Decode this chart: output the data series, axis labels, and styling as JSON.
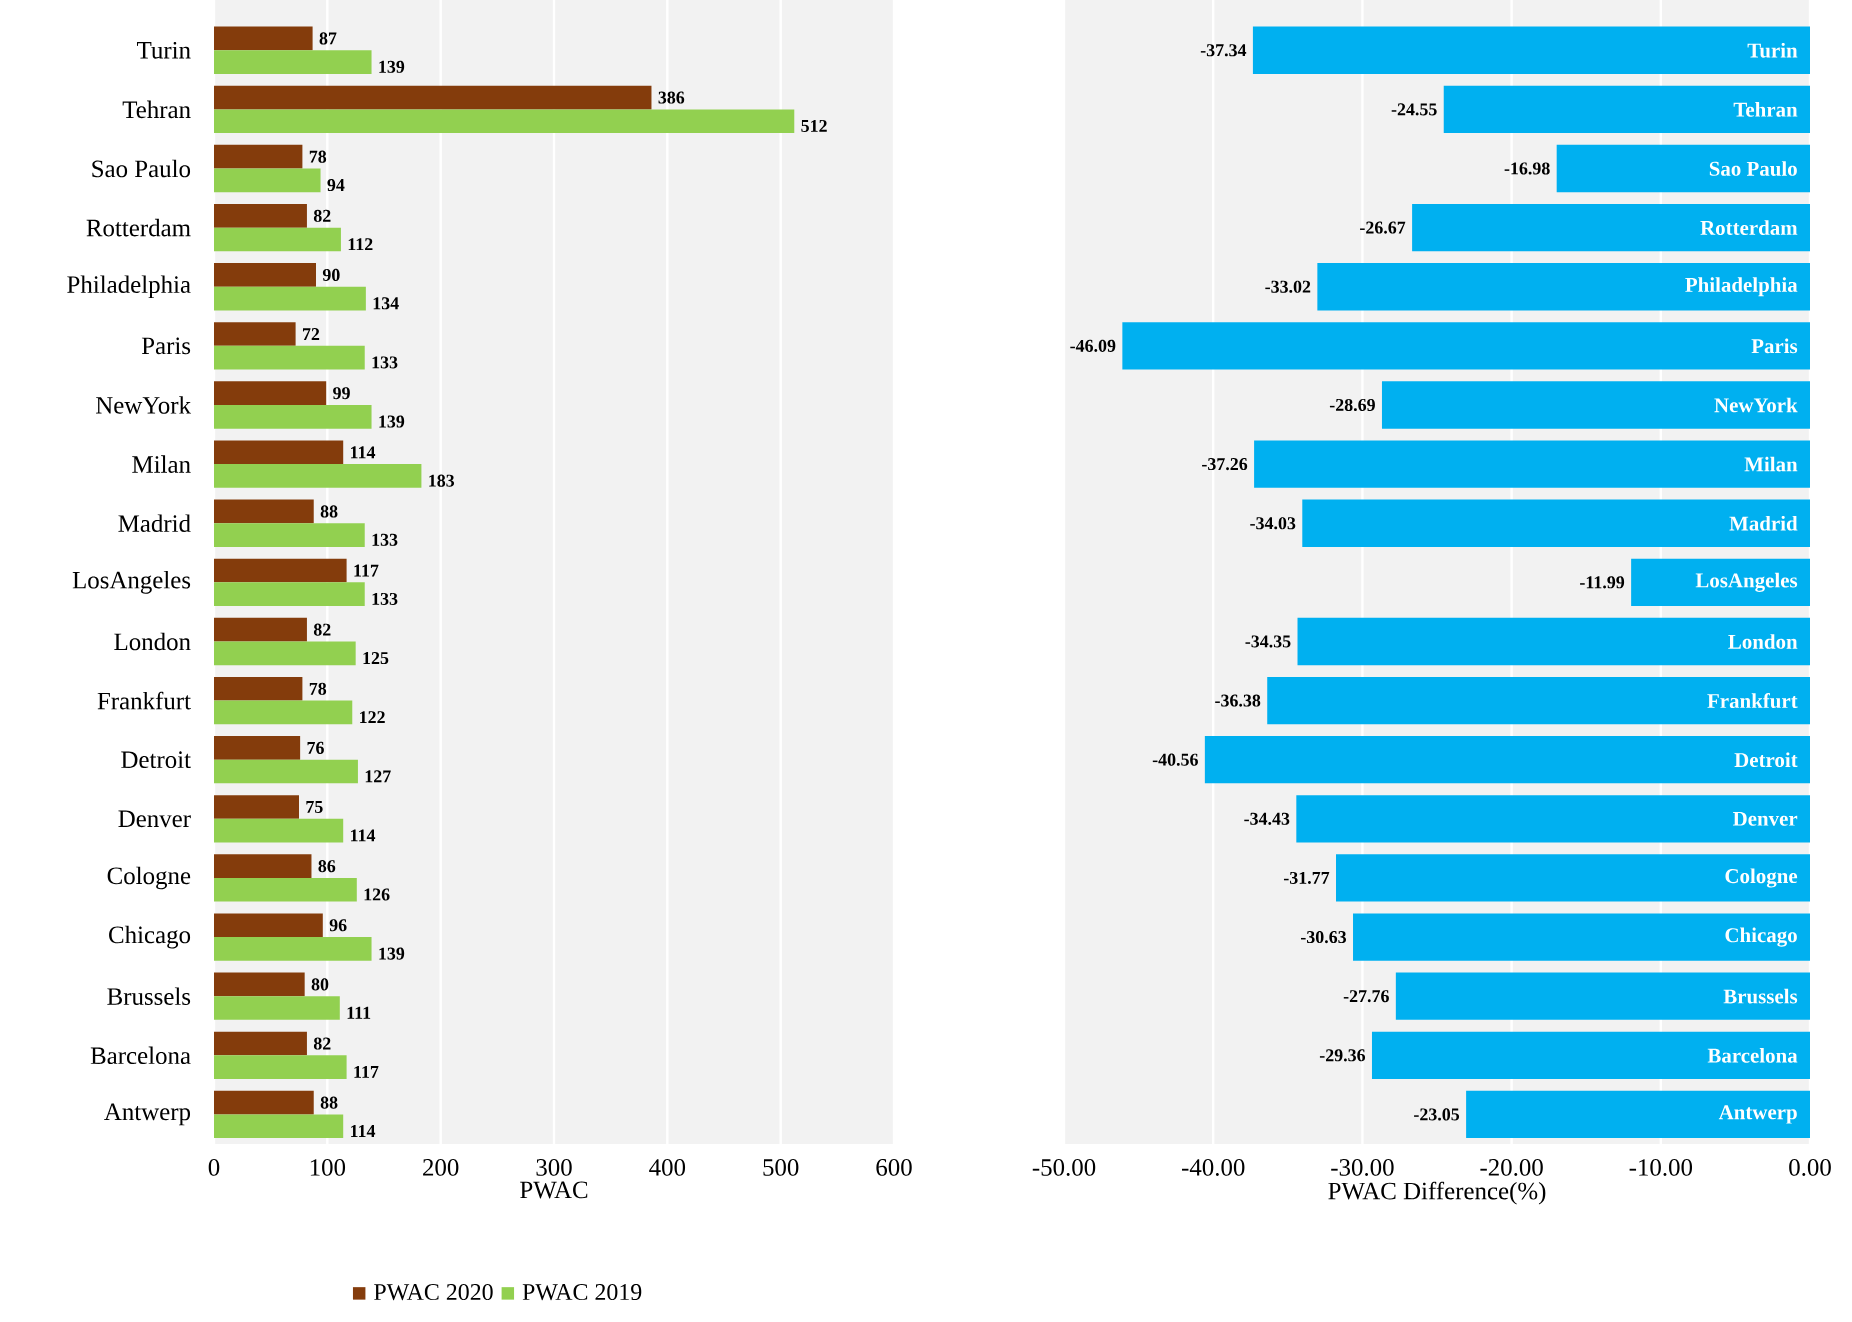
{
  "chart_data": [
    {
      "type": "bar",
      "orientation": "horizontal",
      "xlabel": "PWAC",
      "categories": [
        "Turin",
        "Tehran",
        "Sao Paulo",
        "Rotterdam",
        "Philadelphia",
        "Paris",
        "NewYork",
        "Milan",
        "Madrid",
        "LosAngeles",
        "London",
        "Frankfurt",
        "Detroit",
        "Denver",
        "Cologne",
        "Chicago",
        "Brussels",
        "Barcelona",
        "Antwerp"
      ],
      "series": [
        {
          "name": "PWAC 2020",
          "color": "#843c0c",
          "values": [
            87,
            386,
            78,
            82,
            90,
            72,
            99,
            114,
            88,
            117,
            82,
            78,
            76,
            75,
            86,
            96,
            80,
            82,
            88
          ]
        },
        {
          "name": "PWAC  2019",
          "color": "#92d050",
          "values": [
            139,
            512,
            94,
            112,
            134,
            133,
            139,
            183,
            133,
            133,
            125,
            122,
            127,
            114,
            126,
            139,
            111,
            117,
            114
          ]
        }
      ],
      "xlim": [
        0,
        600
      ],
      "xticks": [
        0,
        100,
        200,
        300,
        400,
        500,
        600
      ],
      "grid": "x",
      "legend": "bottom",
      "data_labels": true
    },
    {
      "type": "bar",
      "orientation": "horizontal",
      "xlabel": "PWAC Difference(%)",
      "categories": [
        "Turin",
        "Tehran",
        "Sao Paulo",
        "Rotterdam",
        "Philadelphia",
        "Paris",
        "NewYork",
        "Milan",
        "Madrid",
        "LosAngeles",
        "London",
        "Frankfurt",
        "Detroit",
        "Denver",
        "Cologne",
        "Chicago",
        "Brussels",
        "Barcelona",
        "Antwerp"
      ],
      "series": [
        {
          "color": "#00b0f0",
          "values": [
            -37.34,
            -24.55,
            -16.98,
            -26.67,
            -33.02,
            -46.09,
            -28.69,
            -37.26,
            -34.03,
            -11.99,
            -34.35,
            -36.38,
            -40.56,
            -34.43,
            -31.77,
            -30.63,
            -27.76,
            -29.36,
            -23.05
          ]
        }
      ],
      "xlim": [
        -50,
        0
      ],
      "xticks": [
        {
          "value": -50,
          "label": "-50.00"
        },
        {
          "value": -40,
          "label": "-40.00"
        },
        {
          "value": -30,
          "label": "-30.00"
        },
        {
          "value": -20,
          "label": "-20.00"
        },
        {
          "value": -10,
          "label": "-10.00"
        },
        {
          "value": 0,
          "label": "0.00"
        }
      ],
      "grid": "x",
      "data_labels": true
    }
  ]
}
